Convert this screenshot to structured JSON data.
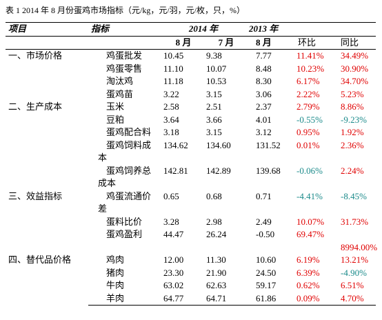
{
  "title": "表 1  2014 年 8 月份蛋鸡市场指标（元/kg，元/羽，元/枚，只，%）",
  "table": {
    "header": {
      "top": [
        "项目",
        "指标",
        "2014 年",
        "2013 年"
      ],
      "sub": [
        "8 月",
        "7 月",
        "8 月",
        "环比",
        "同比"
      ]
    },
    "groups": [
      {
        "label": "一、市场价格",
        "rows": [
          [
            "鸡蛋批发",
            "10.45",
            "9.38",
            "7.77",
            "11.41%",
            "34.49%"
          ],
          [
            "鸡蛋零售",
            "11.10",
            "10.07",
            "8.48",
            "10.23%",
            "30.90%"
          ],
          [
            "淘汰鸡",
            "11.18",
            "10.53",
            "8.30",
            "6.17%",
            "34.70%"
          ],
          [
            "蛋鸡苗",
            "3.22",
            "3.15",
            "3.06",
            "2.22%",
            "5.23%"
          ]
        ]
      },
      {
        "label": "二、生产成本",
        "rows": [
          [
            "玉米",
            "2.58",
            "2.51",
            "2.37",
            "2.79%",
            "8.86%"
          ],
          [
            "豆粕",
            "3.64",
            "3.66",
            "4.01",
            "-0.55%",
            "-9.23%"
          ],
          [
            "蛋鸡配合料",
            "3.18",
            "3.15",
            "3.12",
            "0.95%",
            "1.92%"
          ],
          [
            "蛋鸡饲料成本",
            "134.62",
            "134.60",
            "131.52",
            "0.01%",
            "2.36%"
          ],
          [
            "蛋鸡饲养总成本",
            "142.81",
            "142.89",
            "139.68",
            "-0.06%",
            "2.24%"
          ]
        ]
      },
      {
        "label": "三、效益指标",
        "rows": [
          [
            "鸡蛋流通价差",
            "0.65",
            "0.68",
            "0.71",
            "-4.41%",
            "-8.45%"
          ],
          [
            "蛋料比价",
            "3.28",
            "2.98",
            "2.49",
            "10.07%",
            "31.73%"
          ],
          [
            "蛋鸡盈利",
            "44.47",
            "26.24",
            "-0.50",
            "69.47%",
            "8994.00%"
          ]
        ]
      },
      {
        "label": "四、替代品价格",
        "rows": [
          [
            "鸡肉",
            "12.00",
            "11.30",
            "10.60",
            "6.19%",
            "13.21%"
          ],
          [
            "猪肉",
            "23.30",
            "21.90",
            "24.50",
            "6.39%",
            "-4.90%"
          ],
          [
            "牛肉",
            "63.02",
            "62.63",
            "59.17",
            "0.62%",
            "6.51%"
          ],
          [
            "羊肉",
            "64.77",
            "64.71",
            "61.86",
            "0.09%",
            "4.70%"
          ]
        ]
      }
    ]
  }
}
